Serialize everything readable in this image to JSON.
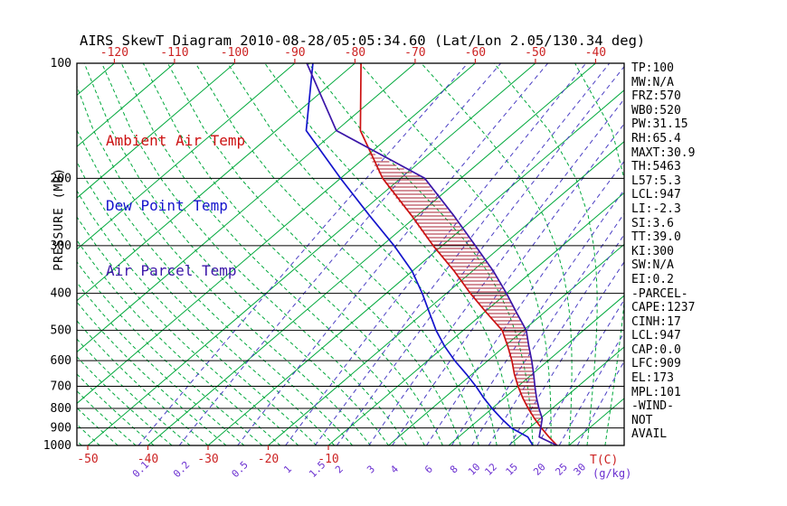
{
  "title": "AIRS SkewT Diagram 2010-08-28/05:05:34.60 (Lat/Lon 2.05/130.34 deg)",
  "y_axis_label": "PRESSURE (MB)",
  "x_axis_label": "T(C)",
  "mixing_unit_label": "(g/kg)",
  "legend": {
    "items": [
      {
        "label": "Ambient Air Temp",
        "color": "#cc1111"
      },
      {
        "label": "Dew Point Temp",
        "color": "#1414cc"
      },
      {
        "label": "Air Parcel Temp",
        "color": "#3b16a8"
      }
    ]
  },
  "stats": {
    "items": [
      "TP:100",
      "MW:N/A",
      "FRZ:570",
      "WB0:520",
      "PW:31.15",
      "RH:65.4",
      "MAXT:30.9",
      "TH:5463",
      "L57:5.3",
      "LCL:947",
      "LI:-2.3",
      "SI:3.6",
      "TT:39.0",
      "KI:300",
      "SW:N/A",
      "EI:0.2",
      "-PARCEL-",
      "CAPE:1237",
      "CINH:17",
      "LCL:947",
      "CAP:0.0",
      "LFC:909",
      "EL:173",
      "MPL:101",
      "-WIND-",
      "NOT",
      "AVAIL"
    ]
  },
  "chart_data": {
    "type": "line",
    "title": "AIRS SkewT Diagram 2010-08-28/05:05:34.60 (Lat/Lon 2.05/130.34 deg)",
    "x_label": "T(C)",
    "y_label": "PRESSURE (MB)",
    "y_scale": "log",
    "pressure_ticks_mb": [
      100,
      200,
      300,
      400,
      500,
      600,
      700,
      800,
      900,
      1000
    ],
    "top_temp_ticks_c": [
      -120,
      -110,
      -100,
      -90,
      -80,
      -70,
      -60,
      -50,
      -40
    ],
    "bottom_temp_ticks_c": [
      -50,
      -40,
      -30,
      -20,
      -10
    ],
    "mixing_ratio_lines_g_kg": [
      0.1,
      0.2,
      0.5,
      1,
      1.5,
      2,
      3,
      4,
      6,
      8,
      10,
      12,
      15,
      20,
      25,
      30
    ],
    "isotherms_c": {
      "min": -120,
      "max": 40,
      "step": 10
    },
    "moist_adiabats_c": {
      "min": -51,
      "max": 36,
      "step": 3
    },
    "hatch_between_mb": {
      "lfc": 909,
      "el": 173
    },
    "colors": {
      "isotherm": "#00a83c",
      "moist_adiabat": "#00a83c",
      "mixing_ratio": "#4b3fc4",
      "grid": "#000000",
      "hatch": "#aa2233",
      "tick_red": "#cc2222",
      "mixing_label": "#6a2fd0"
    },
    "series": [
      {
        "name": "Ambient Air Temp",
        "color": "#cc1111",
        "pressure_mb": [
          100,
          150,
          200,
          250,
          300,
          350,
          400,
          450,
          500,
          550,
          600,
          650,
          700,
          750,
          800,
          850,
          900,
          950,
          1000
        ],
        "temp_c": [
          -79,
          -66,
          -53,
          -41,
          -31.5,
          -23,
          -16,
          -9.5,
          -3.5,
          0.5,
          4,
          7,
          10,
          13,
          16,
          19,
          22,
          25,
          28
        ]
      },
      {
        "name": "Dew Point Temp",
        "color": "#1414cc",
        "pressure_mb": [
          100,
          150,
          200,
          250,
          300,
          350,
          400,
          450,
          500,
          550,
          600,
          650,
          700,
          750,
          800,
          850,
          900,
          950,
          1000
        ],
        "temp_c": [
          -87,
          -75,
          -60,
          -48,
          -38,
          -30,
          -24,
          -19,
          -14.5,
          -10,
          -5.5,
          -1,
          3,
          6.5,
          10,
          13.5,
          17,
          21.5,
          24
        ]
      },
      {
        "name": "Air Parcel Temp",
        "color": "#3b16a8",
        "pressure_mb": [
          100,
          150,
          200,
          250,
          300,
          350,
          400,
          450,
          500,
          550,
          600,
          650,
          700,
          750,
          800,
          850,
          900,
          950,
          1000
        ],
        "temp_c": [
          -88,
          -70,
          -46,
          -34,
          -24.5,
          -16.5,
          -10,
          -4.5,
          0.5,
          4,
          7.3,
          10.2,
          12.8,
          15.3,
          17.8,
          20.3,
          21.9,
          23.4,
          28
        ]
      }
    ]
  }
}
